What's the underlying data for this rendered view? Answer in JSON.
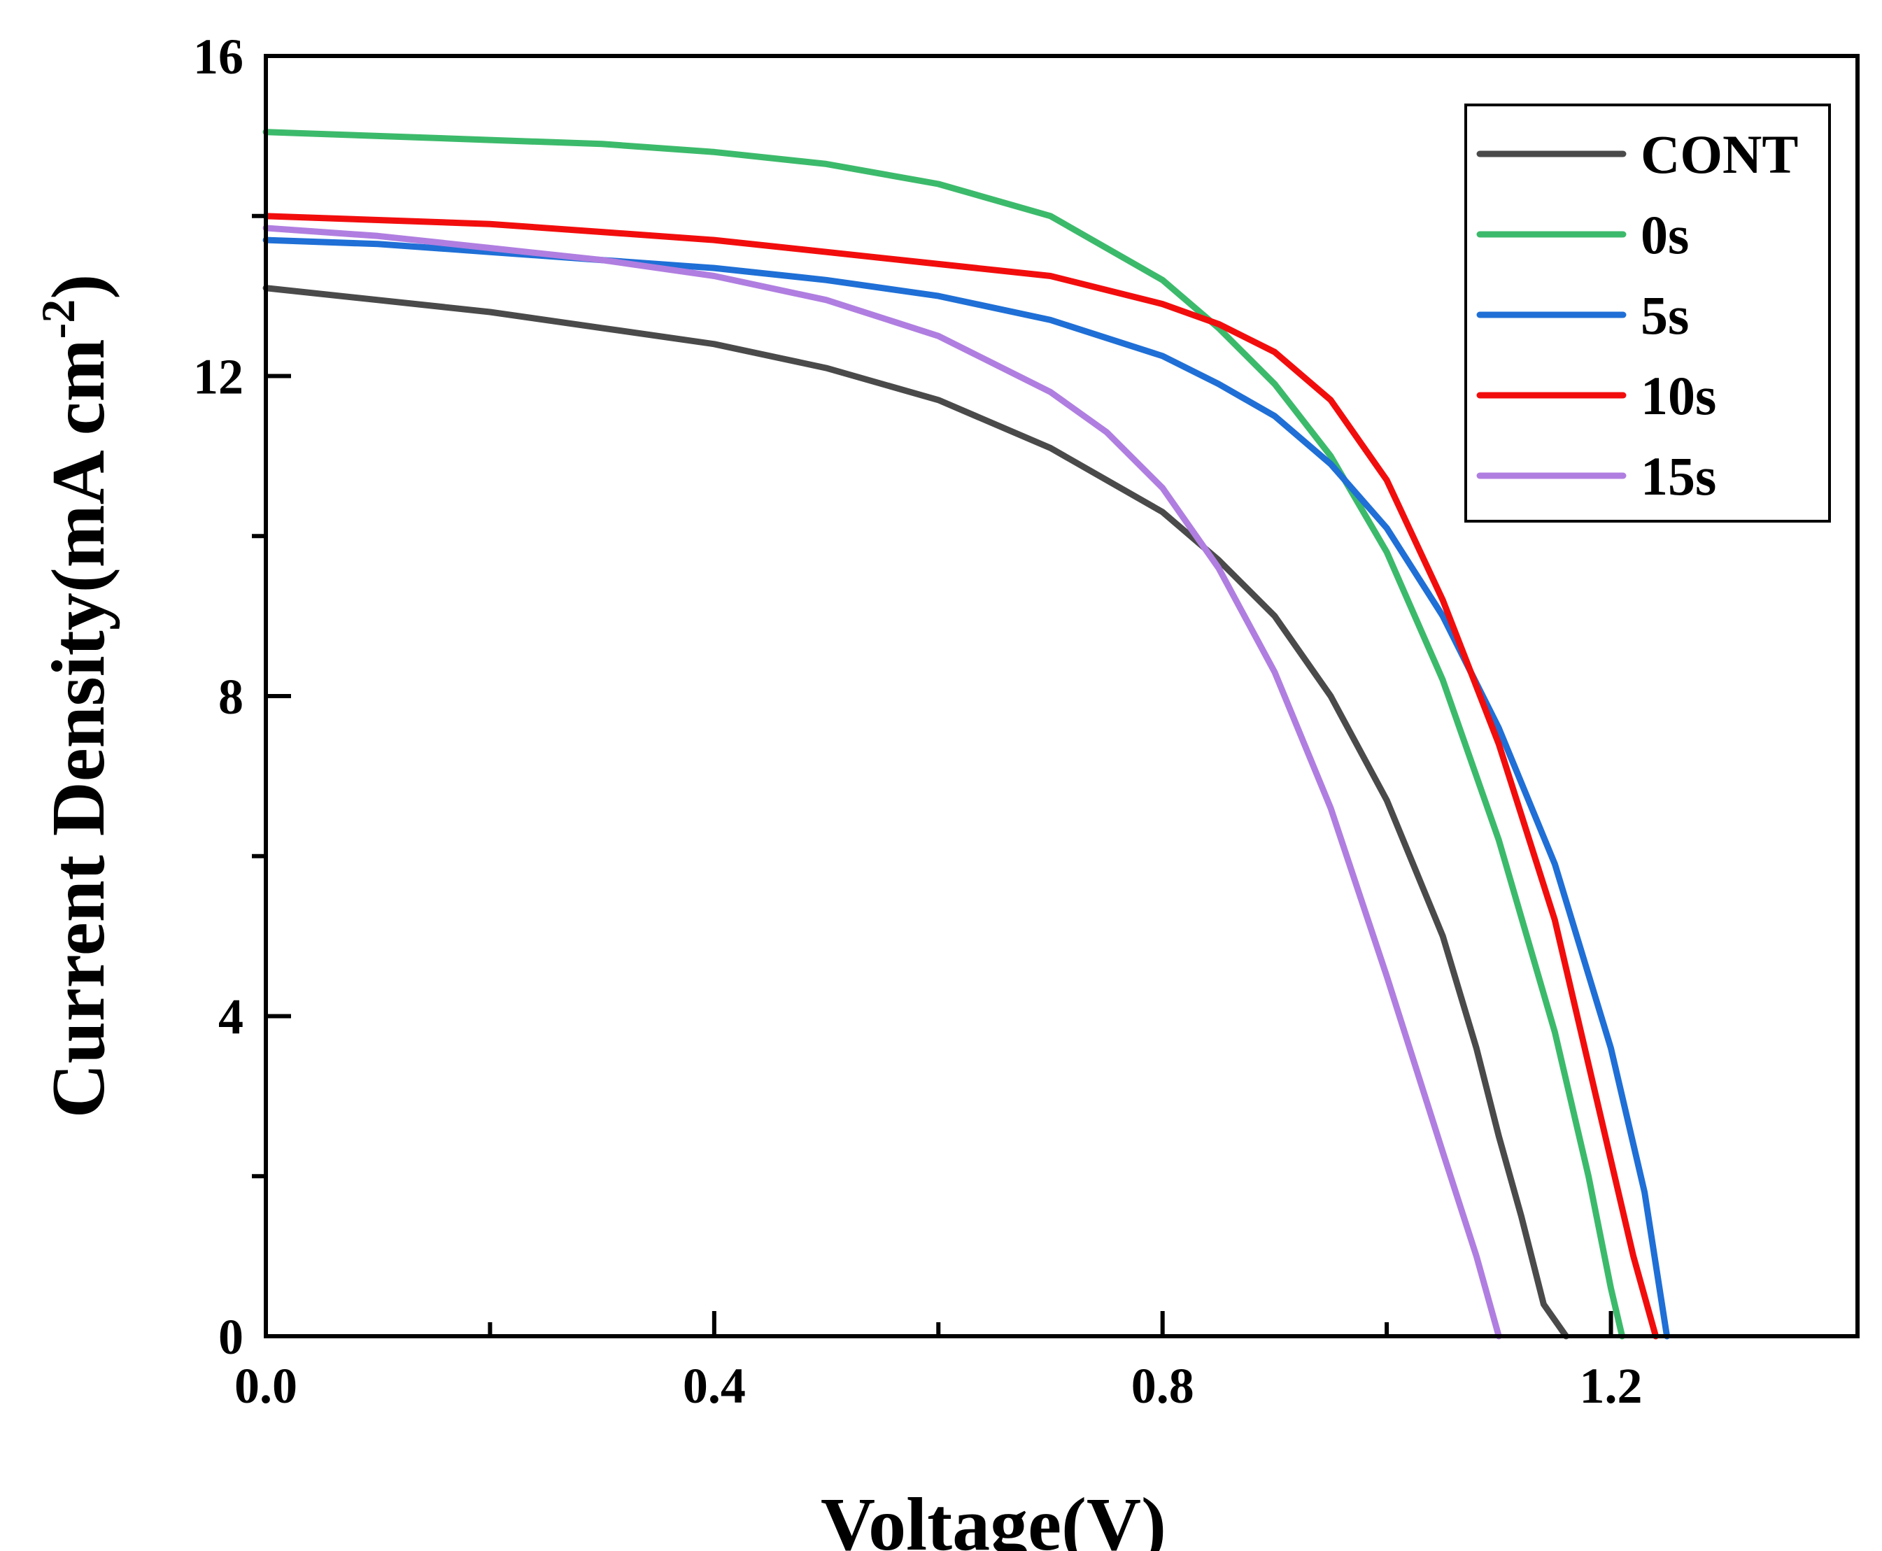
{
  "chart_data": {
    "type": "line",
    "title": "",
    "xlabel": "Voltage(V)",
    "ylabel": "Current Density(mA cm",
    "ylabel_sup": "-2",
    "ylabel_close": ")",
    "xlim": [
      0.0,
      1.42
    ],
    "ylim": [
      0,
      16
    ],
    "x_ticks": [
      {
        "value": 0.0,
        "label": "0.0"
      },
      {
        "value": 0.4,
        "label": "0.4"
      },
      {
        "value": 0.8,
        "label": "0.8"
      },
      {
        "value": 1.2,
        "label": "1.2"
      }
    ],
    "x_minor_ticks": [
      0.2,
      0.6,
      1.0
    ],
    "y_ticks": [
      {
        "value": 0,
        "label": "0"
      },
      {
        "value": 4,
        "label": "4"
      },
      {
        "value": 8,
        "label": "8"
      },
      {
        "value": 12,
        "label": "12"
      },
      {
        "value": 16,
        "label": "16"
      }
    ],
    "y_minor_ticks": [
      2,
      6,
      10,
      14
    ],
    "legend_position": "top-right",
    "series": [
      {
        "name": "CONT",
        "color": "#4a4a4a",
        "x": [
          0.0,
          0.1,
          0.2,
          0.3,
          0.4,
          0.5,
          0.6,
          0.7,
          0.8,
          0.85,
          0.9,
          0.95,
          1.0,
          1.05,
          1.08,
          1.1,
          1.12,
          1.14,
          1.16
        ],
        "y": [
          13.1,
          12.95,
          12.8,
          12.6,
          12.4,
          12.1,
          11.7,
          11.1,
          10.3,
          9.7,
          9.0,
          8.0,
          6.7,
          5.0,
          3.6,
          2.5,
          1.5,
          0.4,
          0.0
        ]
      },
      {
        "name": "0s",
        "color": "#3cba6b",
        "x": [
          0.0,
          0.1,
          0.2,
          0.3,
          0.4,
          0.5,
          0.6,
          0.7,
          0.8,
          0.85,
          0.9,
          0.95,
          1.0,
          1.05,
          1.1,
          1.15,
          1.18,
          1.2,
          1.21
        ],
        "y": [
          15.05,
          15.0,
          14.95,
          14.9,
          14.8,
          14.65,
          14.4,
          14.0,
          13.2,
          12.6,
          11.9,
          11.0,
          9.8,
          8.2,
          6.2,
          3.8,
          2.0,
          0.6,
          0.0
        ]
      },
      {
        "name": "5s",
        "color": "#1f6fd6",
        "x": [
          0.0,
          0.1,
          0.2,
          0.3,
          0.4,
          0.5,
          0.6,
          0.7,
          0.8,
          0.85,
          0.9,
          0.95,
          1.0,
          1.05,
          1.1,
          1.15,
          1.2,
          1.23,
          1.25
        ],
        "y": [
          13.7,
          13.65,
          13.55,
          13.45,
          13.35,
          13.2,
          13.0,
          12.7,
          12.25,
          11.9,
          11.5,
          10.9,
          10.1,
          9.0,
          7.6,
          5.9,
          3.6,
          1.8,
          0.0
        ]
      },
      {
        "name": "10s",
        "color": "#f20d0d",
        "x": [
          0.0,
          0.1,
          0.2,
          0.3,
          0.4,
          0.5,
          0.6,
          0.7,
          0.8,
          0.85,
          0.9,
          0.95,
          1.0,
          1.05,
          1.1,
          1.15,
          1.2,
          1.22,
          1.24
        ],
        "y": [
          14.0,
          13.95,
          13.9,
          13.8,
          13.7,
          13.55,
          13.4,
          13.25,
          12.9,
          12.65,
          12.3,
          11.7,
          10.7,
          9.2,
          7.4,
          5.2,
          2.2,
          1.0,
          0.0
        ]
      },
      {
        "name": "15s",
        "color": "#b07ee0",
        "x": [
          0.0,
          0.1,
          0.2,
          0.3,
          0.4,
          0.5,
          0.6,
          0.7,
          0.75,
          0.8,
          0.85,
          0.9,
          0.95,
          1.0,
          1.05,
          1.08,
          1.1
        ],
        "y": [
          13.85,
          13.75,
          13.6,
          13.45,
          13.25,
          12.95,
          12.5,
          11.8,
          11.3,
          10.6,
          9.6,
          8.3,
          6.6,
          4.5,
          2.3,
          1.0,
          0.0
        ]
      }
    ]
  }
}
